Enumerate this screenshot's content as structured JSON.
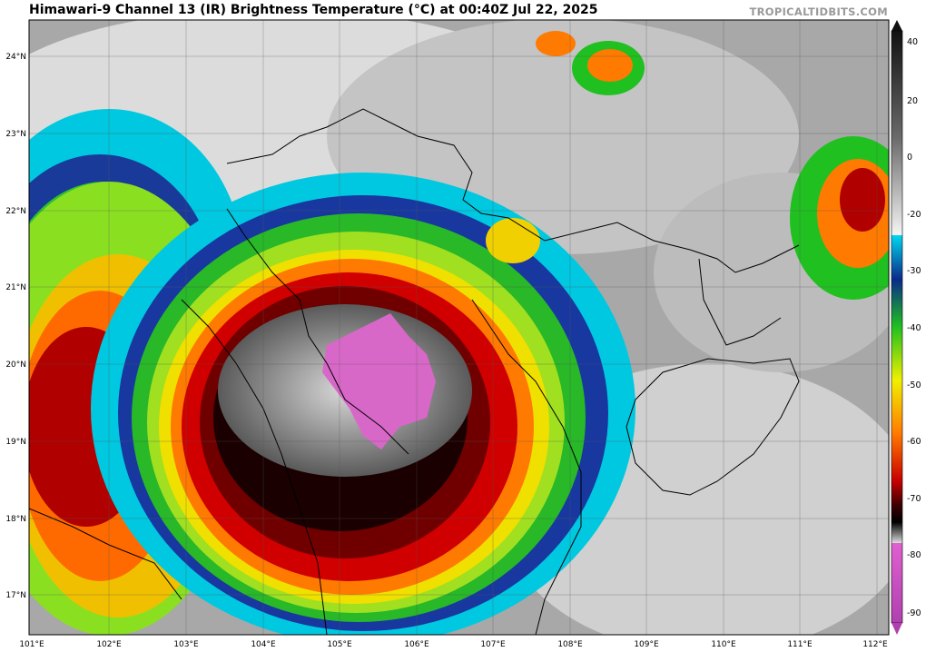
{
  "header": {
    "title": "Himawari-9 Channel 13 (IR) Brightness Temperature (°C) at 00:40Z Jul 22, 2025",
    "credit": "TROPICALTIDBITS.COM"
  },
  "map": {
    "lon_labels": [
      "101°E",
      "102°E",
      "103°E",
      "104°E",
      "105°E",
      "106°E",
      "107°E",
      "108°E",
      "109°E",
      "110°E",
      "111°E",
      "112°E"
    ],
    "lat_labels": [
      "24°N",
      "23°N",
      "22°N",
      "21°N",
      "20°N",
      "19°N",
      "18°N",
      "17°N"
    ],
    "storm_center": {
      "lon": 105.5,
      "lat": 19.8
    }
  },
  "colorbar": {
    "labels": [
      "40",
      "20",
      "0",
      "-20",
      "-30",
      "-40",
      "-50",
      "-60",
      "-70",
      "-80",
      "-90"
    ],
    "colors": {
      "warm": "#1a1a1a",
      "gray_light": "#f0f0f0",
      "cyan": "#00d8f0",
      "blue": "#0a2a8a",
      "green": "#20c020",
      "yellow": "#f0f000",
      "orange": "#ff7a00",
      "red": "#c80000",
      "dark_red": "#400000",
      "black": "#000000",
      "magenta": "#e060d0"
    }
  }
}
